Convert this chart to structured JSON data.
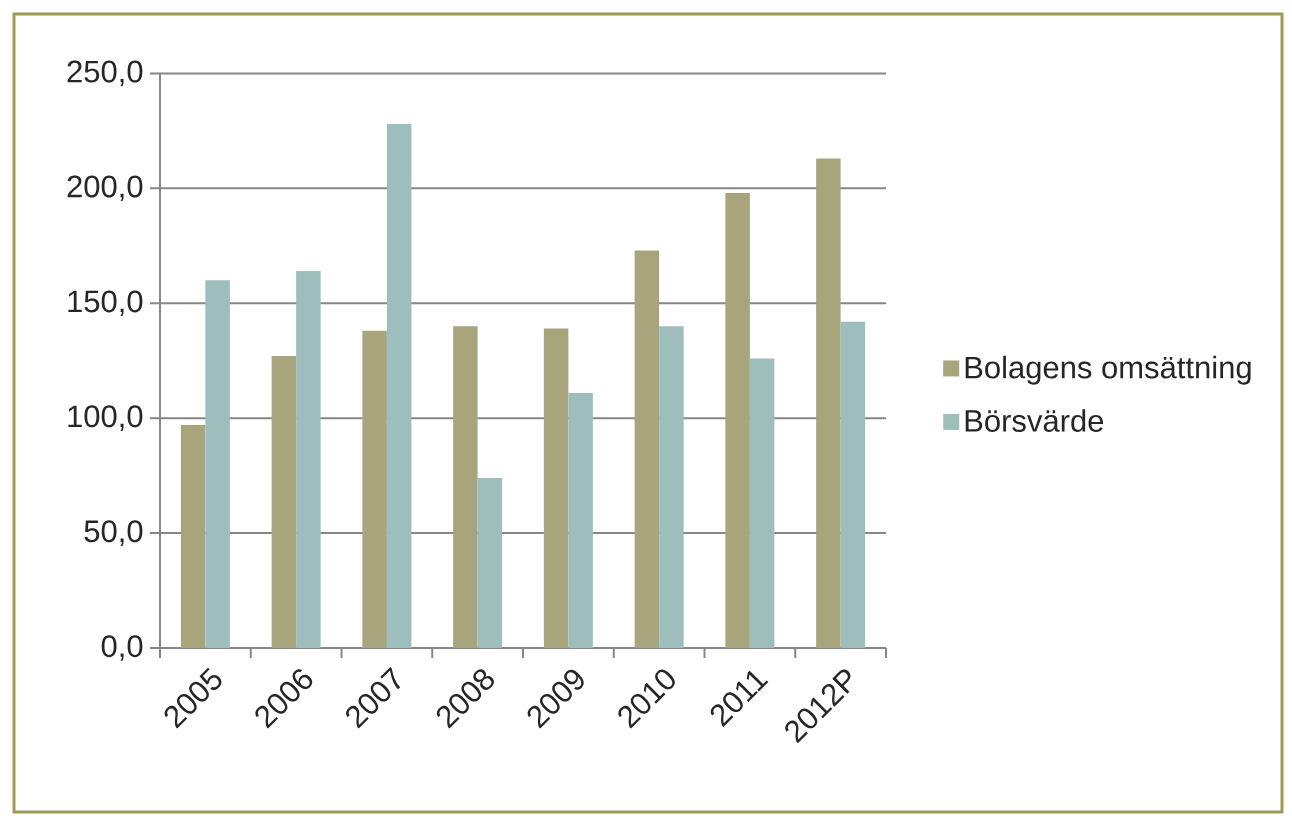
{
  "chart_data": {
    "type": "bar",
    "categories": [
      "2005",
      "2006",
      "2007",
      "2008",
      "2009",
      "2010",
      "2011",
      "2012P"
    ],
    "series": [
      {
        "name": "Bolagens omsättning",
        "color": "#a8a57c",
        "values": [
          97,
          127,
          138,
          140,
          139,
          173,
          198,
          213
        ]
      },
      {
        "name": "Börsvärde",
        "color": "#9ebebe",
        "values": [
          160,
          164,
          228,
          74,
          111,
          140,
          126,
          142
        ]
      }
    ],
    "ylim": [
      0,
      250
    ],
    "yticks": [
      {
        "value": 0,
        "label": "0,0"
      },
      {
        "value": 50,
        "label": "50,0"
      },
      {
        "value": 100,
        "label": "100,0"
      },
      {
        "value": 150,
        "label": "150,0"
      },
      {
        "value": 200,
        "label": "200,0"
      },
      {
        "value": 250,
        "label": "250,0"
      }
    ],
    "grid": "y",
    "legend": "right"
  }
}
